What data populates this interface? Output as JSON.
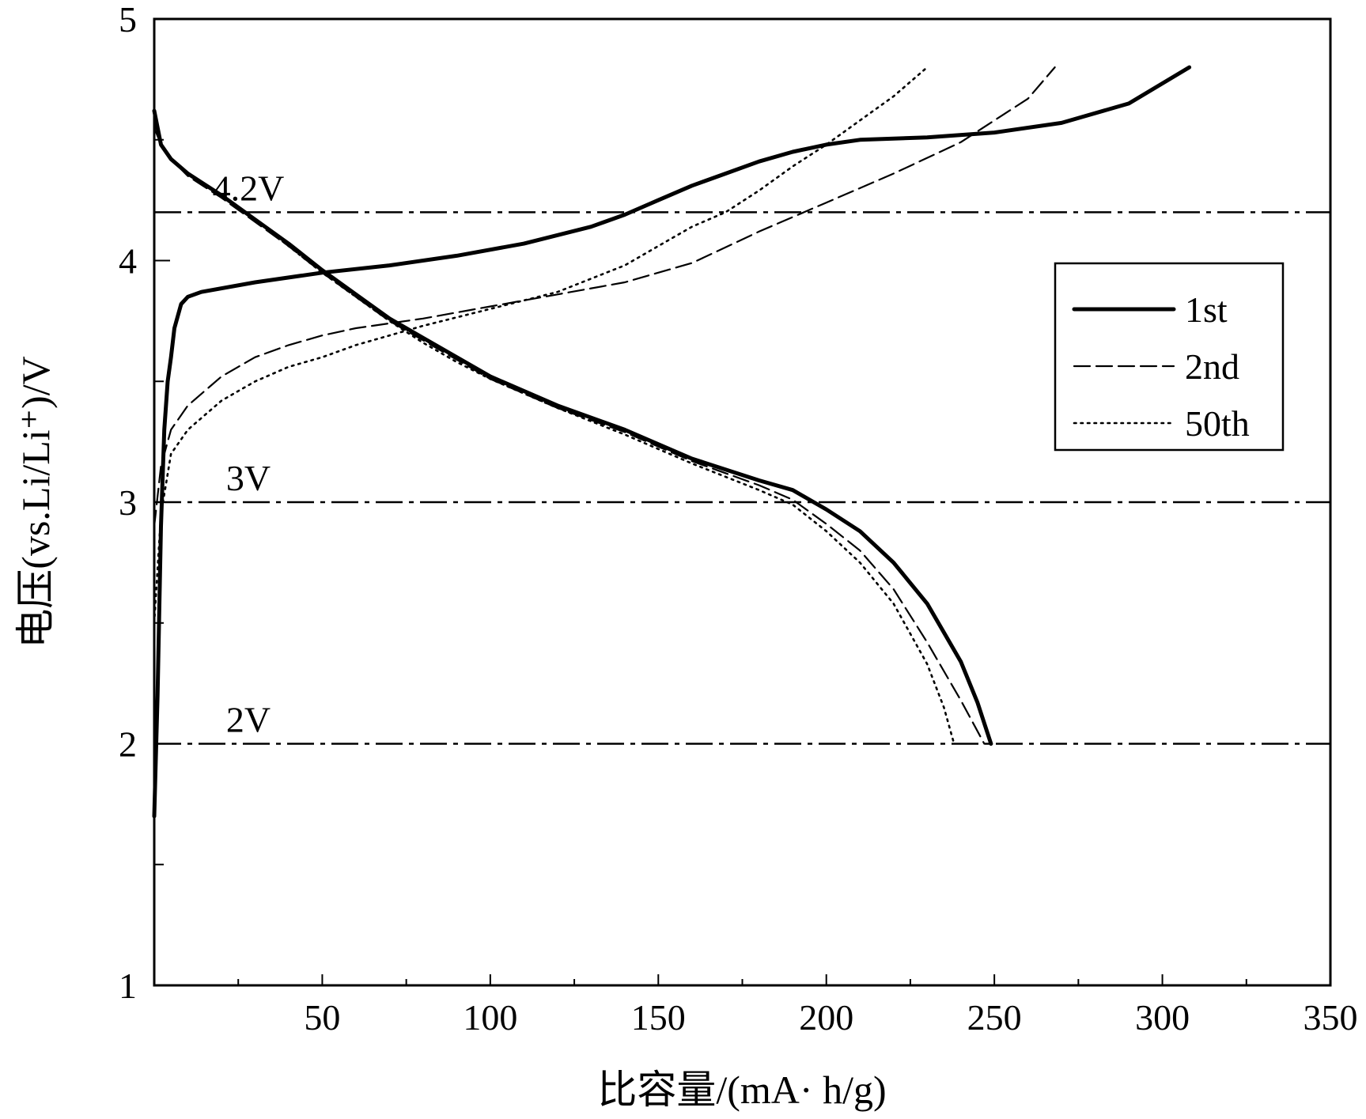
{
  "chart_data": {
    "type": "line",
    "title": "",
    "xlabel": "比容量/(mA· h/g)",
    "ylabel": "电压(vs.Li/Li⁺)/V",
    "xlim": [
      0,
      350
    ],
    "ylim": [
      1,
      5
    ],
    "x_ticks": [
      {
        "value": 50,
        "label": "50"
      },
      {
        "value": 100,
        "label": "100"
      },
      {
        "value": 150,
        "label": "150"
      },
      {
        "value": 200,
        "label": "200"
      },
      {
        "value": 250,
        "label": "250"
      },
      {
        "value": 300,
        "label": "300"
      },
      {
        "value": 350,
        "label": "350"
      }
    ],
    "x_minor_ticks": [
      25,
      75,
      125,
      175,
      225,
      275,
      325
    ],
    "y_ticks": [
      {
        "value": 1,
        "label": "1"
      },
      {
        "value": 2,
        "label": "2"
      },
      {
        "value": 3,
        "label": "3"
      },
      {
        "value": 4,
        "label": "4"
      },
      {
        "value": 5,
        "label": "5"
      }
    ],
    "y_minor_ticks": [
      1.5,
      2.5,
      3.5,
      4.5
    ],
    "reference_lines": [
      {
        "y": 4.2,
        "label": "4.2V"
      },
      {
        "y": 3.0,
        "label": "3V"
      },
      {
        "y": 2.0,
        "label": "2V"
      }
    ],
    "legend_position": "right",
    "grid": false,
    "series": [
      {
        "name": "1st",
        "style": "solid",
        "charge": [
          [
            0,
            1.7
          ],
          [
            1,
            2.2
          ],
          [
            2,
            2.9
          ],
          [
            3,
            3.3
          ],
          [
            4,
            3.5
          ],
          [
            5,
            3.6
          ],
          [
            6,
            3.72
          ],
          [
            8,
            3.82
          ],
          [
            10,
            3.85
          ],
          [
            14,
            3.87
          ],
          [
            30,
            3.91
          ],
          [
            50,
            3.95
          ],
          [
            70,
            3.98
          ],
          [
            90,
            4.02
          ],
          [
            110,
            4.07
          ],
          [
            130,
            4.14
          ],
          [
            140,
            4.19
          ],
          [
            150,
            4.25
          ],
          [
            160,
            4.31
          ],
          [
            170,
            4.36
          ],
          [
            180,
            4.41
          ],
          [
            190,
            4.45
          ],
          [
            200,
            4.48
          ],
          [
            210,
            4.5
          ],
          [
            230,
            4.51
          ],
          [
            250,
            4.53
          ],
          [
            270,
            4.57
          ],
          [
            290,
            4.65
          ],
          [
            308,
            4.8
          ]
        ],
        "discharge": [
          [
            0,
            4.62
          ],
          [
            2,
            4.48
          ],
          [
            5,
            4.42
          ],
          [
            10,
            4.36
          ],
          [
            20,
            4.27
          ],
          [
            30,
            4.17
          ],
          [
            40,
            4.07
          ],
          [
            50,
            3.96
          ],
          [
            60,
            3.86
          ],
          [
            70,
            3.76
          ],
          [
            80,
            3.68
          ],
          [
            90,
            3.6
          ],
          [
            100,
            3.52
          ],
          [
            120,
            3.4
          ],
          [
            140,
            3.3
          ],
          [
            160,
            3.18
          ],
          [
            180,
            3.09
          ],
          [
            190,
            3.05
          ],
          [
            200,
            2.97
          ],
          [
            210,
            2.88
          ],
          [
            220,
            2.75
          ],
          [
            230,
            2.58
          ],
          [
            240,
            2.34
          ],
          [
            245,
            2.17
          ],
          [
            249,
            2.0
          ]
        ]
      },
      {
        "name": "2nd",
        "style": "dashed",
        "charge": [
          [
            0,
            2.9
          ],
          [
            2,
            3.15
          ],
          [
            5,
            3.3
          ],
          [
            10,
            3.4
          ],
          [
            20,
            3.52
          ],
          [
            30,
            3.6
          ],
          [
            40,
            3.65
          ],
          [
            50,
            3.69
          ],
          [
            60,
            3.72
          ],
          [
            70,
            3.74
          ],
          [
            80,
            3.76
          ],
          [
            100,
            3.81
          ],
          [
            120,
            3.86
          ],
          [
            140,
            3.91
          ],
          [
            160,
            3.99
          ],
          [
            180,
            4.12
          ],
          [
            190,
            4.18
          ],
          [
            200,
            4.24
          ],
          [
            220,
            4.36
          ],
          [
            240,
            4.49
          ],
          [
            260,
            4.67
          ],
          [
            268,
            4.8
          ]
        ],
        "discharge": [
          [
            0,
            4.55
          ],
          [
            2,
            4.48
          ],
          [
            5,
            4.42
          ],
          [
            10,
            4.35
          ],
          [
            20,
            4.26
          ],
          [
            30,
            4.16
          ],
          [
            40,
            4.06
          ],
          [
            50,
            3.95
          ],
          [
            60,
            3.85
          ],
          [
            70,
            3.75
          ],
          [
            80,
            3.67
          ],
          [
            90,
            3.59
          ],
          [
            100,
            3.51
          ],
          [
            120,
            3.39
          ],
          [
            140,
            3.29
          ],
          [
            160,
            3.17
          ],
          [
            180,
            3.07
          ],
          [
            190,
            3.01
          ],
          [
            200,
            2.91
          ],
          [
            210,
            2.8
          ],
          [
            220,
            2.64
          ],
          [
            230,
            2.42
          ],
          [
            240,
            2.18
          ],
          [
            247,
            2.0
          ]
        ]
      },
      {
        "name": "50th",
        "style": "dotted",
        "charge": [
          [
            0,
            2.5
          ],
          [
            2,
            2.95
          ],
          [
            5,
            3.2
          ],
          [
            10,
            3.3
          ],
          [
            20,
            3.42
          ],
          [
            30,
            3.5
          ],
          [
            40,
            3.56
          ],
          [
            50,
            3.6
          ],
          [
            60,
            3.65
          ],
          [
            70,
            3.69
          ],
          [
            80,
            3.73
          ],
          [
            100,
            3.8
          ],
          [
            120,
            3.87
          ],
          [
            140,
            3.98
          ],
          [
            160,
            4.14
          ],
          [
            170,
            4.2
          ],
          [
            180,
            4.29
          ],
          [
            190,
            4.39
          ],
          [
            200,
            4.48
          ],
          [
            210,
            4.58
          ],
          [
            220,
            4.68
          ],
          [
            230,
            4.8
          ]
        ],
        "discharge": [
          [
            0,
            4.58
          ],
          [
            2,
            4.48
          ],
          [
            5,
            4.42
          ],
          [
            10,
            4.36
          ],
          [
            20,
            4.27
          ],
          [
            30,
            4.17
          ],
          [
            40,
            4.06
          ],
          [
            50,
            3.95
          ],
          [
            60,
            3.85
          ],
          [
            70,
            3.75
          ],
          [
            80,
            3.66
          ],
          [
            90,
            3.58
          ],
          [
            100,
            3.51
          ],
          [
            120,
            3.39
          ],
          [
            140,
            3.28
          ],
          [
            160,
            3.16
          ],
          [
            180,
            3.05
          ],
          [
            190,
            2.99
          ],
          [
            200,
            2.88
          ],
          [
            210,
            2.75
          ],
          [
            220,
            2.58
          ],
          [
            230,
            2.33
          ],
          [
            235,
            2.15
          ],
          [
            238,
            2.0
          ]
        ]
      }
    ]
  }
}
